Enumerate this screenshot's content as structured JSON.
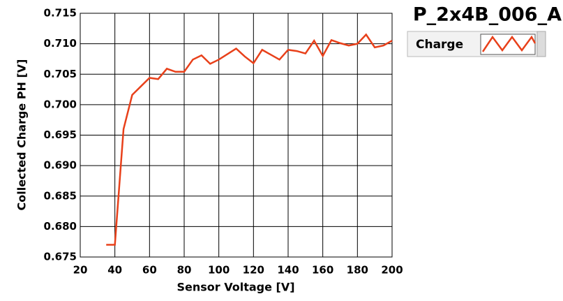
{
  "chart_data": {
    "type": "line",
    "title": "P_2x4B_006_A",
    "x_label": "Sensor Voltage [V]",
    "y_label": "Collected Charge PH [V]",
    "x": [
      35,
      40,
      45,
      50,
      55,
      60,
      65,
      70,
      75,
      80,
      85,
      90,
      95,
      100,
      105,
      110,
      115,
      120,
      125,
      130,
      135,
      140,
      145,
      150,
      155,
      160,
      165,
      170,
      175,
      180,
      185,
      190,
      195,
      200
    ],
    "series": [
      {
        "name": "Charge",
        "color": "#e8401a",
        "values": [
          0.677,
          0.677,
          0.696,
          0.7016,
          0.703,
          0.7044,
          0.7042,
          0.7059,
          0.7054,
          0.7054,
          0.7074,
          0.7081,
          0.7067,
          0.7074,
          0.7083,
          0.7092,
          0.7079,
          0.7068,
          0.709,
          0.7082,
          0.7074,
          0.709,
          0.7088,
          0.7084,
          0.7105,
          0.708,
          0.7106,
          0.7101,
          0.7097,
          0.71,
          0.7115,
          0.7094,
          0.7097,
          0.7105
        ]
      }
    ],
    "xlim": [
      20,
      200
    ],
    "xticks": [
      20,
      40,
      60,
      80,
      100,
      120,
      140,
      160,
      180,
      200
    ],
    "ylim": [
      0.675,
      0.715
    ],
    "yticks": [
      0.675,
      {
        "value": 0.68,
        "label": "0.680"
      },
      0.685,
      {
        "value": 0.69,
        "label": "0.690"
      },
      0.695,
      {
        "value": 0.7,
        "label": "0.700"
      },
      0.705,
      {
        "value": 0.71,
        "label": "0.710"
      },
      0.715
    ],
    "grid": true,
    "legend": "top-right"
  }
}
